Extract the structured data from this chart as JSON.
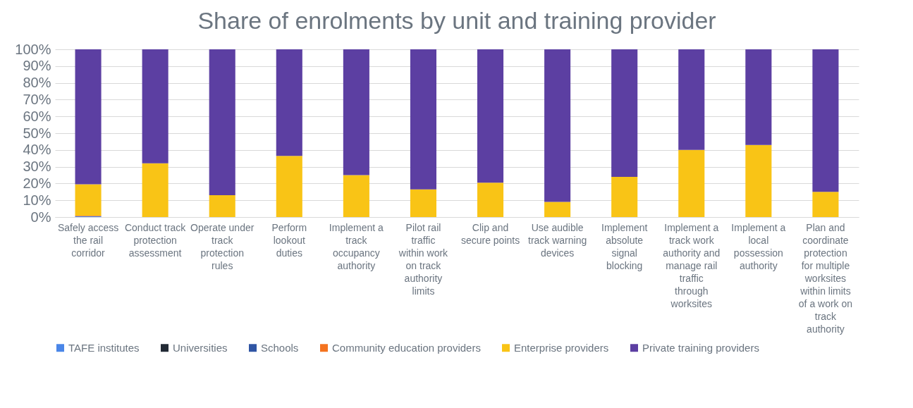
{
  "chart_data": {
    "type": "bar",
    "title": "Share of enrolments by unit and training provider",
    "stacked": true,
    "categories": [
      "Safely access the rail corridor",
      "Conduct track protection assessment",
      "Operate under track protection rules",
      "Perform lookout duties",
      "Implement a track occupancy authority",
      "Pilot rail traffic within work on track authority limits",
      "Clip and secure points",
      "Use audible track warning devices",
      "Implement absolute signal blocking",
      "Implement a track work authority and manage rail traffic through worksites",
      "Implement a local possession authority",
      "Plan and coordinate protection for multiple worksites within limits of a work on track authority"
    ],
    "series": [
      {
        "name": "TAFE institutes",
        "color": "#4a86e8",
        "values": [
          0.5,
          0,
          0,
          0,
          0,
          0,
          0,
          0,
          0,
          0,
          0,
          0
        ]
      },
      {
        "name": "Universities",
        "color": "#222a35",
        "values": [
          0,
          0,
          0,
          0,
          0,
          0,
          0,
          0,
          0,
          0,
          0,
          0
        ]
      },
      {
        "name": "Schools",
        "color": "#2f55a4",
        "values": [
          0,
          0,
          0,
          0,
          0,
          0,
          0,
          0,
          0,
          0,
          0,
          0
        ]
      },
      {
        "name": "Community education providers",
        "color": "#f4731f",
        "values": [
          0.3,
          0,
          0,
          0,
          0,
          0,
          0,
          0,
          0,
          0,
          0,
          0
        ]
      },
      {
        "name": "Enterprise providers",
        "color": "#f9c416",
        "values": [
          18.7,
          32,
          13,
          36.5,
          25,
          16.5,
          20.5,
          9,
          24,
          40,
          43,
          15
        ]
      },
      {
        "name": "Private training providers",
        "color": "#5c3fa2",
        "values": [
          80.5,
          68,
          87,
          63.5,
          75,
          83.5,
          79.5,
          91,
          76,
          60,
          57,
          85
        ]
      }
    ],
    "ylim": [
      0,
      100
    ],
    "yticks": [
      {
        "value": 0,
        "label": "0%"
      },
      {
        "value": 10,
        "label": "10%"
      },
      {
        "value": 20,
        "label": "20%"
      },
      {
        "value": 30,
        "label": "30%"
      },
      {
        "value": 40,
        "label": "40%"
      },
      {
        "value": 50,
        "label": "50%"
      },
      {
        "value": 60,
        "label": "60%"
      },
      {
        "value": 70,
        "label": "70%"
      },
      {
        "value": 80,
        "label": "80%"
      },
      {
        "value": 90,
        "label": "90%"
      },
      {
        "value": 100,
        "label": "100%"
      }
    ],
    "grid": "y",
    "legend": "bottom"
  }
}
